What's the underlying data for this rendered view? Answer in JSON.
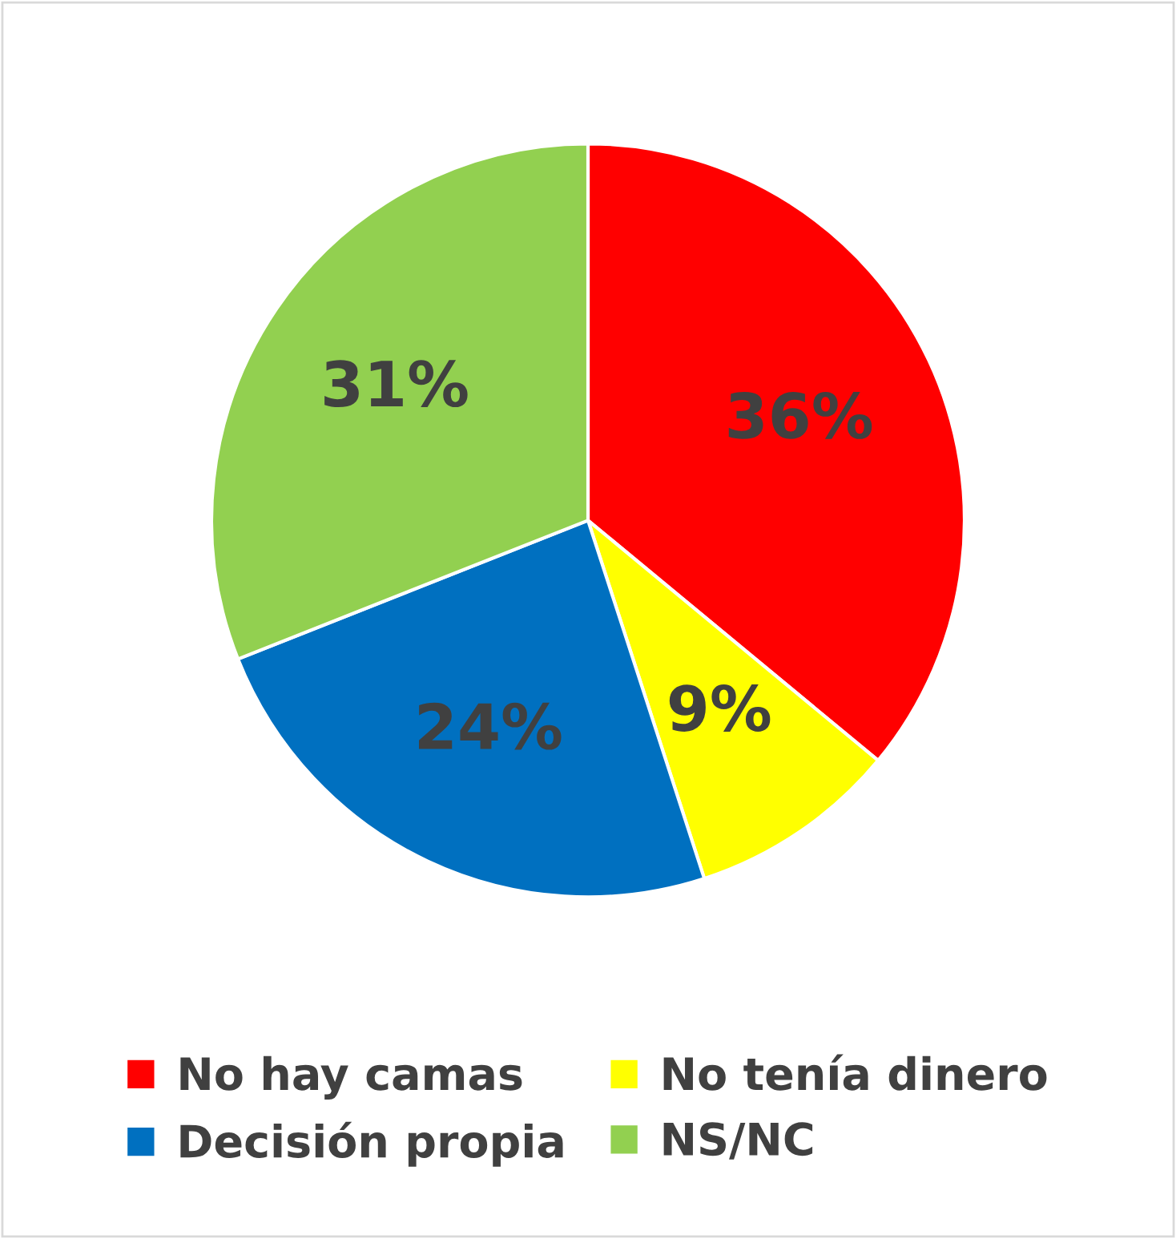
{
  "chart_data": {
    "type": "pie",
    "categories": [
      "No hay camas",
      "No tenía dinero",
      "Decisión propia",
      "NS/NC"
    ],
    "values": [
      36,
      9,
      24,
      31
    ],
    "colors": [
      "#ff0000",
      "#ffff00",
      "#0070c0",
      "#92d050"
    ],
    "value_labels": [
      "36%",
      "9%",
      "24%",
      "31%"
    ],
    "legend": "bottom"
  }
}
